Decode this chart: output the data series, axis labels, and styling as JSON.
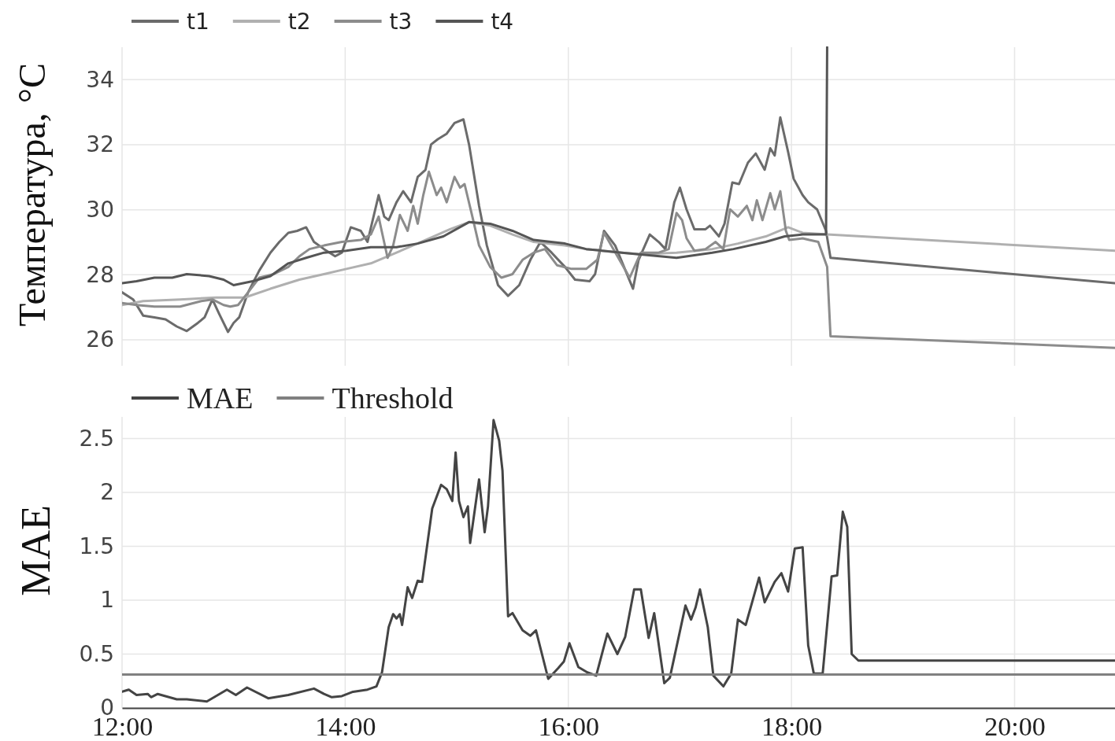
{
  "chart_data": [
    {
      "type": "line",
      "ylabel": "Температура, °C",
      "xlim": [
        12,
        20.9
      ],
      "ylim": [
        25.2,
        35
      ],
      "yticks": [
        26,
        28,
        30,
        32,
        34
      ],
      "xticks": [
        {
          "value": 12,
          "label": null
        },
        {
          "value": 14,
          "label": null
        },
        {
          "value": 16,
          "label": null
        },
        {
          "value": 18,
          "label": null
        },
        {
          "value": 20,
          "label": null
        }
      ],
      "tick_labels": "y",
      "grid": true,
      "legend": "top left",
      "line_style": "solid",
      "series": [
        {
          "name": "t1",
          "color": "#6b6b6b",
          "x": [
            12.0,
            12.1,
            12.19,
            12.29,
            12.39,
            12.49,
            12.58,
            12.68,
            12.74,
            12.81,
            12.87,
            12.95,
            13.0,
            13.05,
            13.13,
            13.23,
            13.33,
            13.41,
            13.49,
            13.57,
            13.65,
            13.72,
            13.81,
            13.91,
            13.97,
            14.05,
            14.14,
            14.2,
            14.3,
            14.35,
            14.39,
            14.46,
            14.52,
            14.59,
            14.65,
            14.72,
            14.77,
            14.83,
            14.91,
            14.98,
            15.06,
            15.11,
            15.2,
            15.27,
            15.37,
            15.46,
            15.56,
            15.66,
            15.75,
            15.85,
            15.97,
            16.06,
            16.19,
            16.24,
            16.32,
            16.42,
            16.58,
            16.63,
            16.73,
            16.81,
            16.87,
            16.95,
            17.0,
            17.06,
            17.13,
            17.23,
            17.27,
            17.35,
            17.4,
            17.47,
            17.53,
            17.61,
            17.68,
            17.76,
            17.81,
            17.85,
            17.9,
            17.97,
            18.02,
            18.1,
            18.15,
            18.23,
            18.31,
            18.35,
            20.9
          ],
          "values": [
            27.46,
            27.24,
            26.74,
            26.69,
            26.63,
            26.41,
            26.27,
            26.52,
            26.69,
            27.24,
            26.8,
            26.24,
            26.52,
            26.69,
            27.46,
            28.13,
            28.68,
            29.01,
            29.29,
            29.35,
            29.46,
            29.01,
            28.79,
            28.57,
            28.68,
            29.46,
            29.35,
            29.01,
            30.45,
            29.79,
            29.68,
            30.23,
            30.57,
            30.23,
            31.01,
            31.23,
            32.01,
            32.17,
            32.34,
            32.67,
            32.78,
            32.01,
            30.12,
            28.9,
            27.68,
            27.35,
            27.68,
            28.46,
            29.01,
            28.68,
            28.24,
            27.85,
            27.8,
            28.02,
            29.35,
            28.9,
            27.57,
            28.46,
            29.24,
            29.01,
            28.79,
            30.23,
            30.68,
            30.01,
            29.4,
            29.4,
            29.51,
            29.18,
            29.57,
            30.84,
            30.79,
            31.45,
            31.73,
            31.23,
            31.89,
            31.67,
            32.84,
            31.78,
            30.95,
            30.45,
            30.23,
            30.01,
            29.35,
            28.52,
            27.74
          ]
        },
        {
          "name": "t2",
          "color": "#b0b0b0",
          "x": [
            12.0,
            12.19,
            12.52,
            12.84,
            13.1,
            13.33,
            13.59,
            13.81,
            14.01,
            14.23,
            14.46,
            14.72,
            14.94,
            15.11,
            15.3,
            15.5,
            15.69,
            15.97,
            16.16,
            16.48,
            16.65,
            16.97,
            17.29,
            17.52,
            17.77,
            17.97,
            18.1,
            18.32,
            20.9
          ],
          "values": [
            27.07,
            27.19,
            27.24,
            27.3,
            27.3,
            27.57,
            27.85,
            28.02,
            28.18,
            28.35,
            28.68,
            29.07,
            29.4,
            29.62,
            29.51,
            29.24,
            29.01,
            28.9,
            28.79,
            28.68,
            28.63,
            28.68,
            28.79,
            28.96,
            29.18,
            29.46,
            29.29,
            29.24,
            28.74
          ]
        },
        {
          "name": "t3",
          "color": "#8c8c8c",
          "x": [
            12.0,
            12.13,
            12.29,
            12.52,
            12.71,
            12.81,
            12.91,
            12.97,
            13.04,
            13.13,
            13.23,
            13.36,
            13.49,
            13.59,
            13.68,
            13.81,
            13.97,
            14.14,
            14.23,
            14.3,
            14.32,
            14.38,
            14.43,
            14.49,
            14.56,
            14.61,
            14.65,
            14.7,
            14.75,
            14.82,
            14.86,
            14.91,
            14.98,
            15.03,
            15.07,
            15.14,
            15.2,
            15.3,
            15.4,
            15.5,
            15.59,
            15.69,
            15.79,
            15.9,
            16.03,
            16.16,
            16.26,
            16.32,
            16.55,
            16.65,
            16.81,
            16.9,
            16.97,
            17.02,
            17.06,
            17.13,
            17.23,
            17.32,
            17.39,
            17.45,
            17.52,
            17.6,
            17.65,
            17.69,
            17.74,
            17.81,
            17.85,
            17.9,
            17.95,
            17.98,
            18.1,
            18.16,
            18.24,
            18.32,
            18.35,
            20.9
          ],
          "values": [
            27.13,
            27.07,
            27.02,
            27.02,
            27.19,
            27.24,
            27.07,
            27.02,
            27.07,
            27.46,
            27.91,
            28.02,
            28.24,
            28.57,
            28.79,
            28.9,
            29.01,
            29.07,
            29.24,
            29.79,
            29.46,
            28.52,
            28.9,
            29.84,
            29.35,
            30.12,
            29.57,
            30.45,
            31.17,
            30.45,
            30.68,
            30.23,
            31.01,
            30.68,
            30.79,
            29.79,
            28.9,
            28.24,
            27.91,
            28.02,
            28.46,
            28.68,
            28.79,
            28.29,
            28.18,
            28.18,
            28.46,
            29.29,
            27.91,
            28.68,
            28.68,
            28.79,
            29.9,
            29.68,
            29.12,
            28.74,
            28.79,
            29.01,
            28.79,
            30.01,
            29.79,
            30.12,
            29.68,
            30.29,
            29.68,
            30.51,
            30.01,
            30.57,
            29.35,
            29.07,
            29.12,
            29.07,
            29.01,
            28.24,
            26.11,
            25.75
          ]
        },
        {
          "name": "t4",
          "color": "#555555",
          "x": [
            12.0,
            12.13,
            12.29,
            12.45,
            12.58,
            12.78,
            12.91,
            13.0,
            13.17,
            13.33,
            13.49,
            13.65,
            13.81,
            14.01,
            14.23,
            14.46,
            14.65,
            14.88,
            15.11,
            15.3,
            15.5,
            15.69,
            15.97,
            16.16,
            16.48,
            16.97,
            17.29,
            17.48,
            17.77,
            17.94,
            18.1,
            18.31,
            18.32
          ],
          "values": [
            27.74,
            27.8,
            27.91,
            27.91,
            28.02,
            27.96,
            27.85,
            27.68,
            27.8,
            27.96,
            28.35,
            28.52,
            28.68,
            28.74,
            28.85,
            28.85,
            28.96,
            29.18,
            29.62,
            29.57,
            29.35,
            29.07,
            28.96,
            28.79,
            28.68,
            28.52,
            28.68,
            28.79,
            29.01,
            29.18,
            29.24,
            29.24,
            35
          ]
        }
      ]
    },
    {
      "type": "line",
      "ylabel": "MAE",
      "xlim": [
        12,
        20.9
      ],
      "ylim": [
        0,
        2.7
      ],
      "yticks": [
        0,
        0.5,
        1,
        1.5,
        2,
        2.5
      ],
      "xticks": [
        {
          "value": 12,
          "label": "12:00"
        },
        {
          "value": 14,
          "label": "14:00"
        },
        {
          "value": 16,
          "label": "16:00"
        },
        {
          "value": 18,
          "label": "18:00"
        },
        {
          "value": 20,
          "label": "20:00"
        }
      ],
      "grid": true,
      "legend": "top left",
      "line_style": "solid",
      "series": [
        {
          "name": "MAE",
          "color": "#444444",
          "x": [
            12.0,
            12.06,
            12.13,
            12.23,
            12.26,
            12.32,
            12.49,
            12.58,
            12.76,
            12.94,
            13.02,
            13.12,
            13.31,
            13.49,
            13.72,
            13.81,
            13.88,
            13.97,
            14.07,
            14.2,
            14.28,
            14.33,
            14.39,
            14.43,
            14.46,
            14.49,
            14.51,
            14.56,
            14.6,
            14.65,
            14.69,
            14.78,
            14.86,
            14.91,
            14.96,
            14.99,
            15.02,
            15.06,
            15.1,
            15.12,
            15.2,
            15.25,
            15.28,
            15.33,
            15.38,
            15.41,
            15.46,
            15.5,
            15.59,
            15.66,
            15.71,
            15.82,
            15.91,
            15.96,
            16.01,
            16.09,
            16.17,
            16.25,
            16.35,
            16.44,
            16.51,
            16.59,
            16.65,
            16.72,
            16.77,
            16.86,
            16.91,
            17.05,
            17.1,
            17.14,
            17.18,
            17.25,
            17.3,
            17.39,
            17.46,
            17.52,
            17.59,
            17.71,
            17.76,
            17.85,
            17.91,
            17.97,
            18.03,
            18.1,
            18.15,
            18.2,
            18.28,
            18.36,
            18.41,
            18.46,
            18.5,
            18.54,
            18.6,
            20.9
          ],
          "values": [
            0.15,
            0.17,
            0.12,
            0.13,
            0.1,
            0.13,
            0.08,
            0.08,
            0.06,
            0.17,
            0.12,
            0.19,
            0.09,
            0.12,
            0.18,
            0.13,
            0.1,
            0.11,
            0.15,
            0.17,
            0.2,
            0.33,
            0.75,
            0.87,
            0.83,
            0.87,
            0.77,
            1.12,
            1.02,
            1.18,
            1.17,
            1.85,
            2.07,
            2.03,
            1.92,
            2.37,
            1.92,
            1.77,
            1.87,
            1.53,
            2.12,
            1.63,
            1.87,
            2.67,
            2.48,
            2.2,
            0.85,
            0.88,
            0.72,
            0.67,
            0.72,
            0.27,
            0.37,
            0.43,
            0.6,
            0.38,
            0.33,
            0.3,
            0.69,
            0.5,
            0.66,
            1.1,
            1.1,
            0.65,
            0.88,
            0.23,
            0.28,
            0.95,
            0.82,
            0.93,
            1.1,
            0.75,
            0.3,
            0.2,
            0.32,
            0.82,
            0.77,
            1.21,
            0.98,
            1.17,
            1.25,
            1.08,
            1.48,
            1.49,
            0.58,
            0.32,
            0.32,
            1.22,
            1.23,
            1.82,
            1.68,
            0.5,
            0.44,
            0.44
          ]
        },
        {
          "name": "Threshold",
          "color": "#808080",
          "x": [
            12,
            20.9
          ],
          "values": [
            0.31,
            0.31
          ]
        }
      ]
    }
  ]
}
